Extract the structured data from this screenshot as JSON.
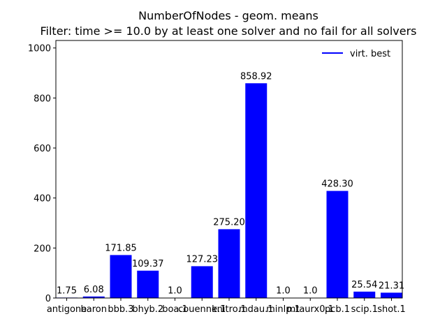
{
  "chart_data": {
    "type": "bar",
    "title": "NumberOfNodes - geom. means",
    "subtitle": "Filter: time >= 10.0 by at least one solver and no fail for all solvers",
    "categories": [
      "antigone",
      "baron",
      "bbb.3",
      "bhyb.2",
      "boa.1",
      "couenne.1",
      "knitro.1",
      "mdau.1",
      "minlp.1",
      "mtaurx0.1",
      "pcb.1",
      "scip.1",
      "shot.1"
    ],
    "values": [
      1.75,
      6.08,
      171.85,
      109.37,
      1.0,
      127.23,
      275.2,
      858.92,
      1.0,
      1.0,
      428.3,
      25.54,
      21.31
    ],
    "value_labels": [
      "1.75",
      "6.08",
      "171.85",
      "109.37",
      "1.0",
      "127.23",
      "275.20",
      "858.92",
      "1.0",
      "1.0",
      "428.30",
      "25.54",
      "21.31"
    ],
    "series": [
      {
        "name": "virt. best",
        "color": "#0000ff"
      }
    ],
    "ylim": [
      0,
      1030
    ],
    "yticks": [
      0,
      200,
      400,
      600,
      800,
      1000
    ],
    "grid": false,
    "legend_position": "top-right"
  }
}
